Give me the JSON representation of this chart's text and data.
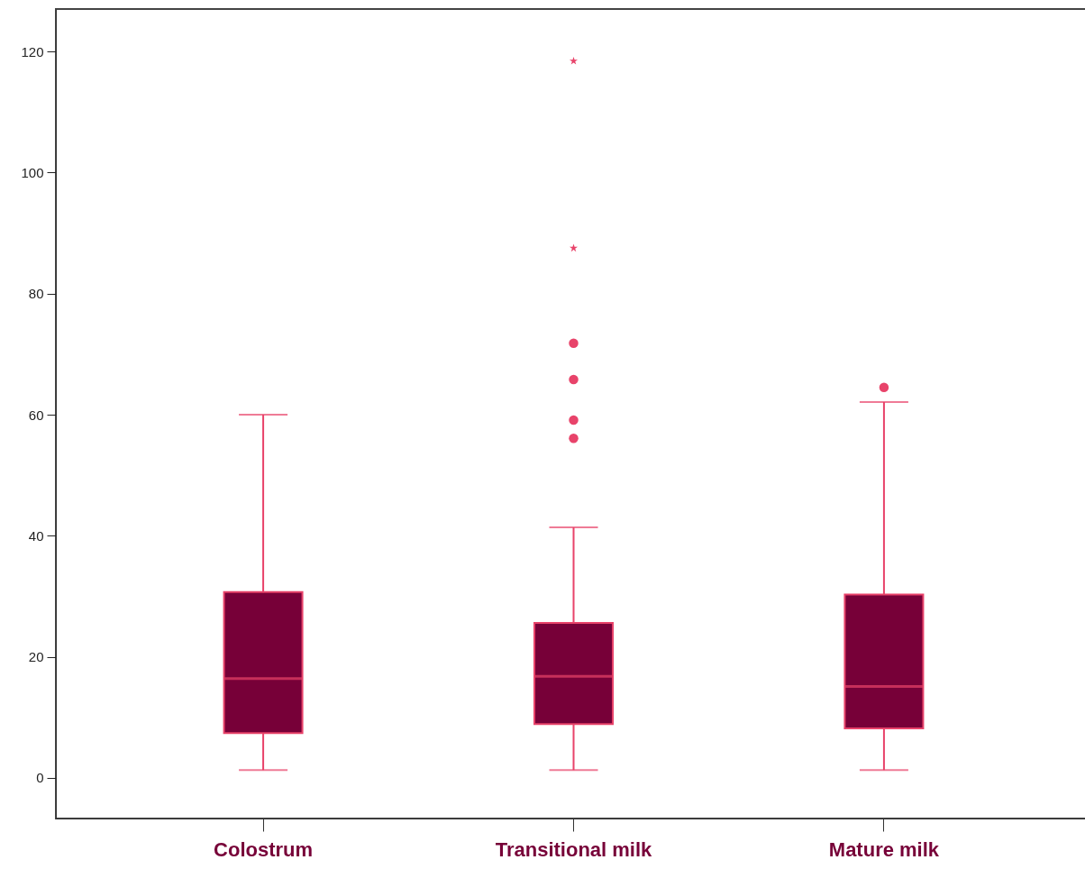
{
  "chart_data": {
    "type": "box",
    "categories": [
      "Colostrum",
      "Transitional milk",
      "Mature milk"
    ],
    "ylim": [
      -6.7,
      127
    ],
    "yticks": [
      0,
      20,
      40,
      60,
      80,
      100,
      120
    ],
    "series": [
      {
        "color": "#770038",
        "boxes": [
          {
            "low": 1.3,
            "q1": 7.4,
            "median": 16.4,
            "q3": 30.7,
            "high": 60.0
          },
          {
            "low": 1.3,
            "q1": 8.9,
            "median": 16.8,
            "q3": 25.6,
            "high": 41.4,
            "outliers": [
              56.1,
              59.1,
              65.8,
              71.8
            ]
          },
          {
            "low": 1.3,
            "q1": 8.2,
            "median": 15.1,
            "q3": 30.3,
            "high": 62.1,
            "outliers": [
              64.5
            ]
          }
        ]
      },
      {
        "type": "scatter",
        "marker": "star",
        "color": "#e8436a",
        "x": [
          "Transitional milk",
          "Transitional milk"
        ],
        "values": [
          118.4,
          87.5
        ]
      }
    ]
  }
}
